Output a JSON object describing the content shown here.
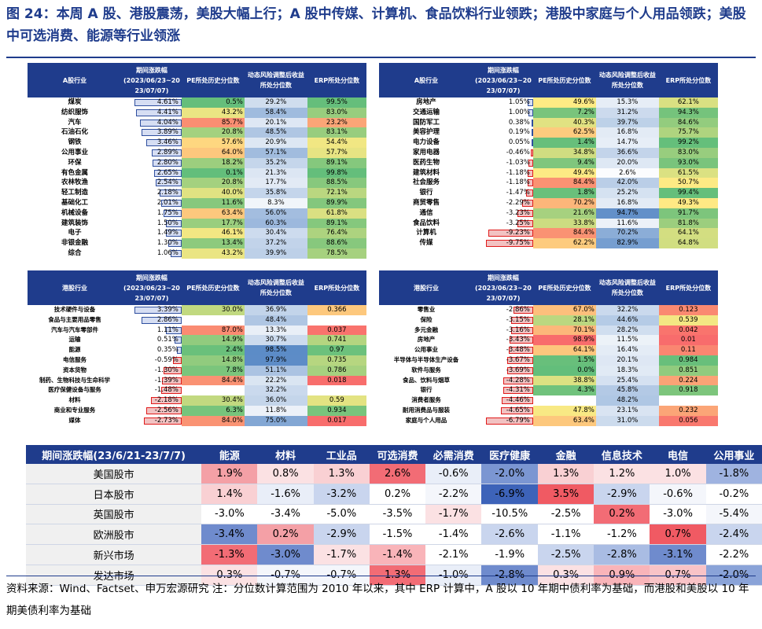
{
  "title": "图 24：本周 A 股、港股震荡，美股大幅上行；A 股中传媒、计算机、食品饮料行业领跌；港股中家庭与个人用品领跌；美股中可选消费、能源等行业领涨",
  "a_share": {
    "headers": [
      "A股行业",
      "期间涨跌幅\n(2023/06/23~20\n23/07/07)",
      "PE所处历史分位数",
      "动态风险调整后收益所处分位数",
      "ERP所处分位数"
    ],
    "left": [
      {
        "name": "煤炭",
        "chg": "4.61%",
        "pe": "0.5%",
        "risk": "29.2%",
        "erp": "99.5%"
      },
      {
        "name": "纺织服饰",
        "chg": "4.41%",
        "pe": "43.2%",
        "risk": "58.4%",
        "erp": "83.0%"
      },
      {
        "name": "汽车",
        "chg": "4.04%",
        "pe": "85.7%",
        "risk": "20.1%",
        "erp": "23.2%"
      },
      {
        "name": "石油石化",
        "chg": "3.89%",
        "pe": "20.8%",
        "risk": "48.5%",
        "erp": "83.1%"
      },
      {
        "name": "钢铁",
        "chg": "3.46%",
        "pe": "57.6%",
        "risk": "20.9%",
        "erp": "54.4%"
      },
      {
        "name": "公用事业",
        "chg": "2.89%",
        "pe": "64.0%",
        "risk": "57.1%",
        "erp": "57.7%"
      },
      {
        "name": "环保",
        "chg": "2.80%",
        "pe": "18.2%",
        "risk": "35.2%",
        "erp": "89.1%"
      },
      {
        "name": "有色金属",
        "chg": "2.65%",
        "pe": "0.1%",
        "risk": "21.3%",
        "erp": "99.8%"
      },
      {
        "name": "农林牧渔",
        "chg": "2.54%",
        "pe": "20.8%",
        "risk": "17.7%",
        "erp": "88.5%"
      },
      {
        "name": "轻工制造",
        "chg": "2.18%",
        "pe": "40.0%",
        "risk": "35.8%",
        "erp": "72.1%"
      },
      {
        "name": "基础化工",
        "chg": "2.01%",
        "pe": "11.6%",
        "risk": "8.3%",
        "erp": "89.9%"
      },
      {
        "name": "机械设备",
        "chg": "1.75%",
        "pe": "63.4%",
        "risk": "56.0%",
        "erp": "61.8%"
      },
      {
        "name": "建筑装饰",
        "chg": "1.50%",
        "pe": "17.7%",
        "risk": "60.3%",
        "erp": "89.1%"
      },
      {
        "name": "电子",
        "chg": "1.49%",
        "pe": "46.1%",
        "risk": "30.4%",
        "erp": "76.4%"
      },
      {
        "name": "非银金融",
        "chg": "1.30%",
        "pe": "13.4%",
        "risk": "37.2%",
        "erp": "88.6%"
      },
      {
        "name": "综合",
        "chg": "1.06%",
        "pe": "43.2%",
        "risk": "39.9%",
        "erp": "78.5%"
      }
    ],
    "right": [
      {
        "name": "房地产",
        "chg": "1.05%",
        "pe": "49.6%",
        "risk": "15.3%",
        "erp": "62.1%"
      },
      {
        "name": "交通运输",
        "chg": "1.00%",
        "pe": "7.2%",
        "risk": "31.2%",
        "erp": "94.3%"
      },
      {
        "name": "国防军工",
        "chg": "0.38%",
        "pe": "40.3%",
        "risk": "39.7%",
        "erp": "84.6%"
      },
      {
        "name": "美容护理",
        "chg": "0.19%",
        "pe": "62.5%",
        "risk": "16.8%",
        "erp": "75.7%"
      },
      {
        "name": "电力设备",
        "chg": "0.05%",
        "pe": "1.4%",
        "risk": "14.7%",
        "erp": "99.2%"
      },
      {
        "name": "家用电器",
        "chg": "-0.46%",
        "pe": "34.8%",
        "risk": "36.6%",
        "erp": "83.0%"
      },
      {
        "name": "医药生物",
        "chg": "-1.03%",
        "pe": "9.4%",
        "risk": "20.0%",
        "erp": "93.0%"
      },
      {
        "name": "建筑材料",
        "chg": "-1.18%",
        "pe": "49.4%",
        "risk": "2.6%",
        "erp": "61.5%"
      },
      {
        "name": "社会服务",
        "chg": "-1.18%",
        "pe": "84.4%",
        "risk": "42.0%",
        "erp": "50.7%"
      },
      {
        "name": "银行",
        "chg": "-1.47%",
        "pe": "1.8%",
        "risk": "25.2%",
        "erp": "99.4%"
      },
      {
        "name": "商贸零售",
        "chg": "-2.29%",
        "pe": "70.2%",
        "risk": "16.8%",
        "erp": "49.3%"
      },
      {
        "name": "通信",
        "chg": "-3.23%",
        "pe": "21.6%",
        "risk": "94.7%",
        "erp": "91.7%"
      },
      {
        "name": "食品饮料",
        "chg": "-3.25%",
        "pe": "33.8%",
        "risk": "11.6%",
        "erp": "81.8%"
      },
      {
        "name": "计算机",
        "chg": "-9.23%",
        "pe": "84.4%",
        "risk": "70.2%",
        "erp": "64.1%"
      },
      {
        "name": "传媒",
        "chg": "-9.75%",
        "pe": "62.2%",
        "risk": "82.9%",
        "erp": "64.8%"
      }
    ]
  },
  "hk": {
    "headers": [
      "港股行业",
      "期间涨跌幅\n(2023/06/23~20\n23/07/07)",
      "PE所处历史分位数",
      "动态风险调整后收益所处分位数",
      "ERP所处分位数"
    ],
    "left": [
      {
        "name": "技术硬件与设备",
        "chg": "3.39%",
        "pe": "30.0%",
        "risk": "36.9%",
        "erp": "0.366"
      },
      {
        "name": "食品与主要用品零售",
        "chg": "2.86%",
        "pe": "",
        "risk": "48.4%",
        "erp": ""
      },
      {
        "name": "汽车与汽车零部件",
        "chg": "1.11%",
        "pe": "87.0%",
        "risk": "13.3%",
        "erp": "0.037"
      },
      {
        "name": "运输",
        "chg": "0.51%",
        "pe": "14.9%",
        "risk": "30.7%",
        "erp": "0.741"
      },
      {
        "name": "能源",
        "chg": "0.35%",
        "pe": "2.4%",
        "risk": "98.5%",
        "erp": "0.97"
      },
      {
        "name": "电信服务",
        "chg": "-0.59%",
        "pe": "14.8%",
        "risk": "97.9%",
        "erp": "0.735"
      },
      {
        "name": "资本货物",
        "chg": "-1.30%",
        "pe": "7.8%",
        "risk": "51.1%",
        "erp": "0.786"
      },
      {
        "name": "制药、生物科技与生命科学",
        "chg": "-1.39%",
        "pe": "84.4%",
        "risk": "22.2%",
        "erp": "0.018"
      },
      {
        "name": "医疗保健设备与服务",
        "chg": "-1.48%",
        "pe": "",
        "risk": "32.2%",
        "erp": ""
      },
      {
        "name": "材料",
        "chg": "-2.18%",
        "pe": "30.4%",
        "risk": "36.0%",
        "erp": "0.59"
      },
      {
        "name": "商业和专业服务",
        "chg": "-2.56%",
        "pe": "6.3%",
        "risk": "11.8%",
        "erp": "0.934"
      },
      {
        "name": "媒体",
        "chg": "-2.73%",
        "pe": "84.0%",
        "risk": "75.0%",
        "erp": "0.017"
      }
    ],
    "right": [
      {
        "name": "零售业",
        "chg": "-2.86%",
        "pe": "67.0%",
        "risk": "32.2%",
        "erp": "0.123"
      },
      {
        "name": "保险",
        "chg": "-3.15%",
        "pe": "28.1%",
        "risk": "44.6%",
        "erp": "0.539"
      },
      {
        "name": "多元金融",
        "chg": "-3.16%",
        "pe": "70.1%",
        "risk": "28.2%",
        "erp": "0.042"
      },
      {
        "name": "房地产",
        "chg": "-3.43%",
        "pe": "98.9%",
        "risk": "11.5%",
        "erp": "0.01"
      },
      {
        "name": "公用事业",
        "chg": "-3.48%",
        "pe": "64.1%",
        "risk": "16.4%",
        "erp": "0.11"
      },
      {
        "name": "半导体与半导体生产设备",
        "chg": "-3.67%",
        "pe": "1.5%",
        "risk": "20.1%",
        "erp": "0.984"
      },
      {
        "name": "软件与服务",
        "chg": "-3.69%",
        "pe": "0.0%",
        "risk": "18.3%",
        "erp": "0.851"
      },
      {
        "name": "食品、饮料与烟草",
        "chg": "-4.28%",
        "pe": "38.8%",
        "risk": "25.4%",
        "erp": "0.224"
      },
      {
        "name": "银行",
        "chg": "-4.31%",
        "pe": "4.3%",
        "risk": "45.8%",
        "erp": "0.918"
      },
      {
        "name": "消费者服务",
        "chg": "-4.46%",
        "pe": "",
        "risk": "48.2%",
        "erp": ""
      },
      {
        "name": "耐用消费品与服装",
        "chg": "-4.65%",
        "pe": "47.8%",
        "risk": "23.1%",
        "erp": "0.232"
      },
      {
        "name": "家庭与个人用品",
        "chg": "-6.79%",
        "pe": "63.4%",
        "risk": "31.0%",
        "erp": "0.056"
      }
    ]
  },
  "global": {
    "corner": "期间涨跌幅(23/6/21-23/7/7)",
    "columns": [
      "能源",
      "材料",
      "工业品",
      "可选消费",
      "必需消费",
      "医疗健康",
      "金融",
      "信息技术",
      "电信",
      "公用事业"
    ],
    "rows": [
      {
        "label": "美国股市",
        "values": [
          "1.9%",
          "0.8%",
          "1.3%",
          "2.6%",
          "-0.6%",
          "-2.0%",
          "1.3%",
          "1.2%",
          "1.0%",
          "-1.8%"
        ]
      },
      {
        "label": "日本股市",
        "values": [
          "1.4%",
          "-1.6%",
          "-3.2%",
          "0.2%",
          "-2.2%",
          "-6.9%",
          "3.5%",
          "-2.9%",
          "-0.6%",
          "-0.2%"
        ]
      },
      {
        "label": "英国股市",
        "values": [
          "-3.0%",
          "-3.4%",
          "-5.0%",
          "-3.5%",
          "-1.7%",
          "-10.5%",
          "-2.5%",
          "0.2%",
          "-3.0%",
          "-5.4%"
        ]
      },
      {
        "label": "欧洲股市",
        "values": [
          "-3.4%",
          "0.2%",
          "-2.9%",
          "-1.5%",
          "-1.4%",
          "-2.6%",
          "-1.1%",
          "-1.2%",
          "0.7%",
          "-2.4%"
        ]
      },
      {
        "label": "新兴市场",
        "values": [
          "-1.3%",
          "-3.0%",
          "-1.7%",
          "-1.4%",
          "-2.1%",
          "-1.9%",
          "-2.5%",
          "-2.8%",
          "-3.1%",
          "-2.2%"
        ]
      },
      {
        "label": "发达市场",
        "values": [
          "0.3%",
          "-0.7%",
          "-0.7%",
          "1.3%",
          "-1.0%",
          "-2.8%",
          "0.3%",
          "0.9%",
          "0.7%",
          "-2.0%"
        ]
      }
    ],
    "colors": [
      [
        "#f4a0a6",
        "#fbe1e3",
        "#f9d0d3",
        "#f26c75",
        "#e9eef8",
        "#7b96d2",
        "#f9d0d3",
        "#fbe1e3",
        "#fbe1e3",
        "#9fb3e0"
      ],
      [
        "#f9d0d3",
        "#e9eef8",
        "#c9d5ee",
        "#fff",
        "#f4f6fb",
        "#3d63b9",
        "#f05a63",
        "#c9d5ee",
        "#f4f6fb",
        "#fff"
      ],
      [
        "#fff",
        "#fff",
        "#fff",
        "#fff",
        "#fbe1e3",
        "#fff",
        "#fff",
        "#f26c75",
        "#fff",
        "#f4f6fb"
      ],
      [
        "#6f8bcd",
        "#f4a0a6",
        "#c9d5ee",
        "#fff",
        "#fff",
        "#c9d5ee",
        "#fff",
        "#fff",
        "#f05a63",
        "#c9d5ee"
      ],
      [
        "#f26c75",
        "#6f8bcd",
        "#fbe1e3",
        "#f9b4b9",
        "#fff",
        "#fff",
        "#c9d5ee",
        "#a9bce3",
        "#6f8bcd",
        "#fff"
      ],
      [
        "#fbe1e3",
        "#f4f6fb",
        "#f4f6fb",
        "#f26c75",
        "#e9eef8",
        "#6f8bcd",
        "#fbe1e3",
        "#f9b4b9",
        "#f9c3c7",
        "#8aa3d8"
      ]
    ]
  },
  "source": "资料来源：Wind、Factset、申万宏源研究  注：分位数计算范围为 2010 年以来，其中 ERP 计算中，A 股以 10 年期中债利率为基础，而港股和美股以 10 年期美债利率为基础"
}
